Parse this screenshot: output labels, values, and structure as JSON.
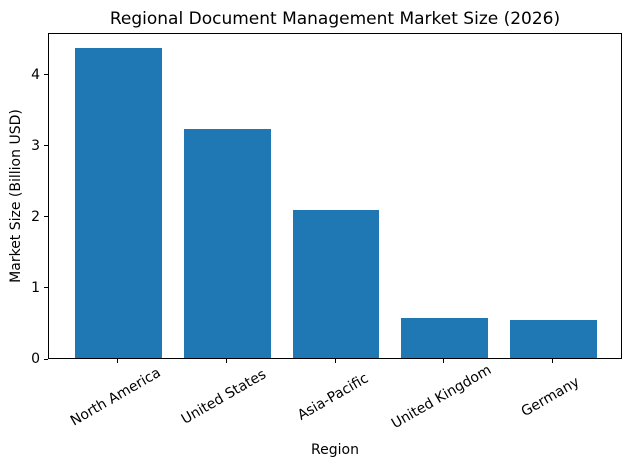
{
  "chart_data": {
    "type": "bar",
    "title": "Regional Document Management Market Size (2026)",
    "xlabel": "Region",
    "ylabel": "Market Size (Billion USD)",
    "categories": [
      "North America",
      "United States",
      "Asia-Pacific",
      "United Kingdom",
      "Germany"
    ],
    "values": [
      4.37,
      3.23,
      2.09,
      0.57,
      0.54
    ],
    "yticks": [
      0,
      1,
      2,
      3,
      4
    ],
    "ylim": [
      0,
      4.59
    ],
    "bar_width_fraction": 0.8,
    "xtick_rotation_deg": 30,
    "bar_color": "#1f77b4",
    "background_color": "#ffffff",
    "spine_color": "#000000",
    "text_color": "#000000",
    "grid": false,
    "legend": null
  }
}
